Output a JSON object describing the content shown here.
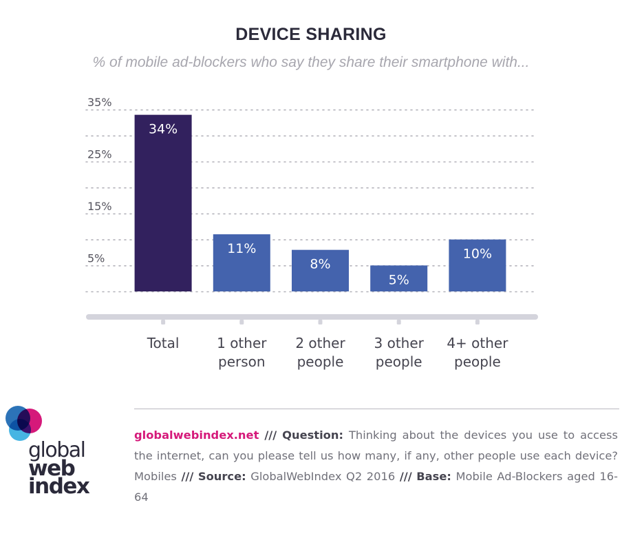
{
  "chart_data": {
    "type": "bar",
    "title": "DEVICE SHARING",
    "subtitle": "% of mobile ad-blockers who say they share their smartphone with...",
    "categories": [
      [
        "Total"
      ],
      [
        "1 other",
        "person"
      ],
      [
        "2 other",
        "people"
      ],
      [
        "3 other",
        "people"
      ],
      [
        "4+ other",
        "people"
      ]
    ],
    "values": [
      34,
      11,
      8,
      5,
      10
    ],
    "data_labels": [
      "34%",
      "11%",
      "8%",
      "5%",
      "10%"
    ],
    "highlight_index": 0,
    "yticks": [
      "35%",
      "25%",
      "15%",
      "5%"
    ],
    "ylim": [
      0,
      37
    ],
    "grid": true,
    "colors": {
      "highlight_bar": "#32215e",
      "bar": "#4463ad",
      "grid": "#b3b2ba",
      "axis": "#d4d4dc",
      "tick_text": "#55545e",
      "category_text": "#45444f",
      "bar_label": "#ffffff"
    }
  },
  "footer": {
    "site": "globalwebindex.net",
    "sep1": "///",
    "question_label": "Question:",
    "question_text": "Thinking about the devices you use to access the internet, can you please tell us how many, if any, other people use each device? Mobiles",
    "sep2": "///",
    "source_label": "Source:",
    "source_text": "GlobalWebIndex Q2 2016",
    "sep3": "///",
    "base_label": "Base:",
    "base_text": "Mobile Ad-Blockers aged 16-64"
  },
  "logo": {
    "line1": "global",
    "line2": "web",
    "line3": "index",
    "colors": [
      "#2c73b8",
      "#d5197a",
      "#46b5e3"
    ]
  }
}
